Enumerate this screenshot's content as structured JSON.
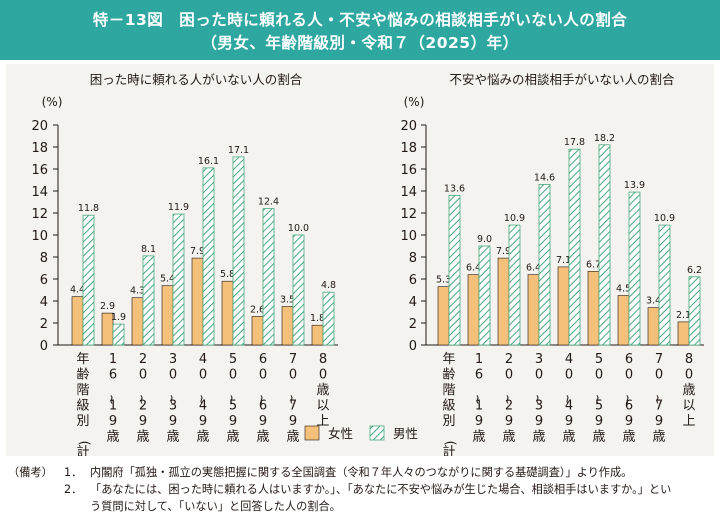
{
  "header": {
    "line1": "特－13図　困った時に頼れる人・不安や悩みの相談相手がいない人の割合",
    "line2": "（男女、年齢階級別・令和７（2025）年）"
  },
  "legend": {
    "female": "女性",
    "male": "男性"
  },
  "colors": {
    "header": "#2ea7a1",
    "female": "#f4c07a",
    "male_hatch": "#46a87c",
    "panel": "#f4f3ef"
  },
  "chart_data": [
    {
      "type": "bar",
      "title": "困った時に頼れる人がいない人の割合",
      "ylabel": "(%)",
      "ylim": [
        0,
        20
      ],
      "yticks": [
        "0",
        "2",
        "4",
        "6",
        "8",
        "10",
        "12",
        "14",
        "16",
        "18",
        "20"
      ],
      "categories": [
        "年齢階級別(計)",
        "16～19歳",
        "20～29歳",
        "30～39歳",
        "40～49歳",
        "50～59歳",
        "60～69歳",
        "70～79歳",
        "80歳以上"
      ],
      "series": [
        {
          "name": "女性",
          "values": [
            4.4,
            2.9,
            4.3,
            5.4,
            7.9,
            5.8,
            2.6,
            3.5,
            1.8
          ]
        },
        {
          "name": "男性",
          "values": [
            11.8,
            1.9,
            8.1,
            11.9,
            16.1,
            17.1,
            12.4,
            10.0,
            4.8
          ]
        }
      ]
    },
    {
      "type": "bar",
      "title": "不安や悩みの相談相手がいない人の割合",
      "ylabel": "(%)",
      "ylim": [
        0,
        20
      ],
      "yticks": [
        "0",
        "2",
        "4",
        "6",
        "8",
        "10",
        "12",
        "14",
        "16",
        "18",
        "20"
      ],
      "categories": [
        "年齢階級別(計)",
        "16～19歳",
        "20～29歳",
        "30～39歳",
        "40～49歳",
        "50～59歳",
        "60～69歳",
        "70～79歳",
        "80歳以上"
      ],
      "series": [
        {
          "name": "女性",
          "values": [
            5.3,
            6.4,
            7.9,
            6.4,
            7.1,
            6.7,
            4.5,
            3.4,
            2.1
          ]
        },
        {
          "name": "男性",
          "values": [
            13.6,
            9.0,
            10.9,
            14.6,
            17.8,
            18.2,
            13.9,
            10.9,
            6.2
          ]
        }
      ]
    }
  ],
  "notes": {
    "prefix": "（備考）",
    "n1_num": "1．",
    "n1": "内閣府「孤独・孤立の実態把握に関する全国調査（令和７年人々のつながりに関する基礎調査）」より作成。",
    "n2_num": "2．",
    "n2a": "「あなたには、困った時に頼れる人はいますか。」、「あなたに不安や悩みが生じた場合、相談相手はいますか。」とい",
    "n2b": "う質問に対して、「いない」と回答した人の割合。"
  }
}
